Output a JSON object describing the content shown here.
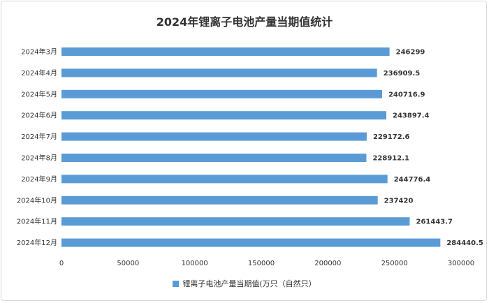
{
  "chart_data": {
    "type": "bar",
    "orientation": "horizontal",
    "title": "2024年锂离子电池产量当期值统计",
    "categories": [
      "2024年3月",
      "2024年4月",
      "2024年5月",
      "2024年6月",
      "2024年7月",
      "2024年8月",
      "2024年9月",
      "2024年10月",
      "2024年11月",
      "2024年12月"
    ],
    "series": [
      {
        "name": "锂离子电池产量当期值(万只（自然只）",
        "values": [
          246299,
          236909.5,
          240716.9,
          243897.4,
          229172.6,
          228912.1,
          244776.4,
          237420,
          261443.7,
          284440.5
        ],
        "labels": [
          "246299",
          "236909.5",
          "240716.9",
          "243897.4",
          "229172.6",
          "228912.1",
          "244776.4",
          "237420",
          "261443.7",
          "284440.5"
        ]
      }
    ],
    "xlim": [
      0,
      300000
    ],
    "xticks": [
      0,
      50000,
      100000,
      150000,
      200000,
      250000,
      300000
    ],
    "grid": false,
    "legend_position": "bottom",
    "color": "#5b9bd5"
  }
}
